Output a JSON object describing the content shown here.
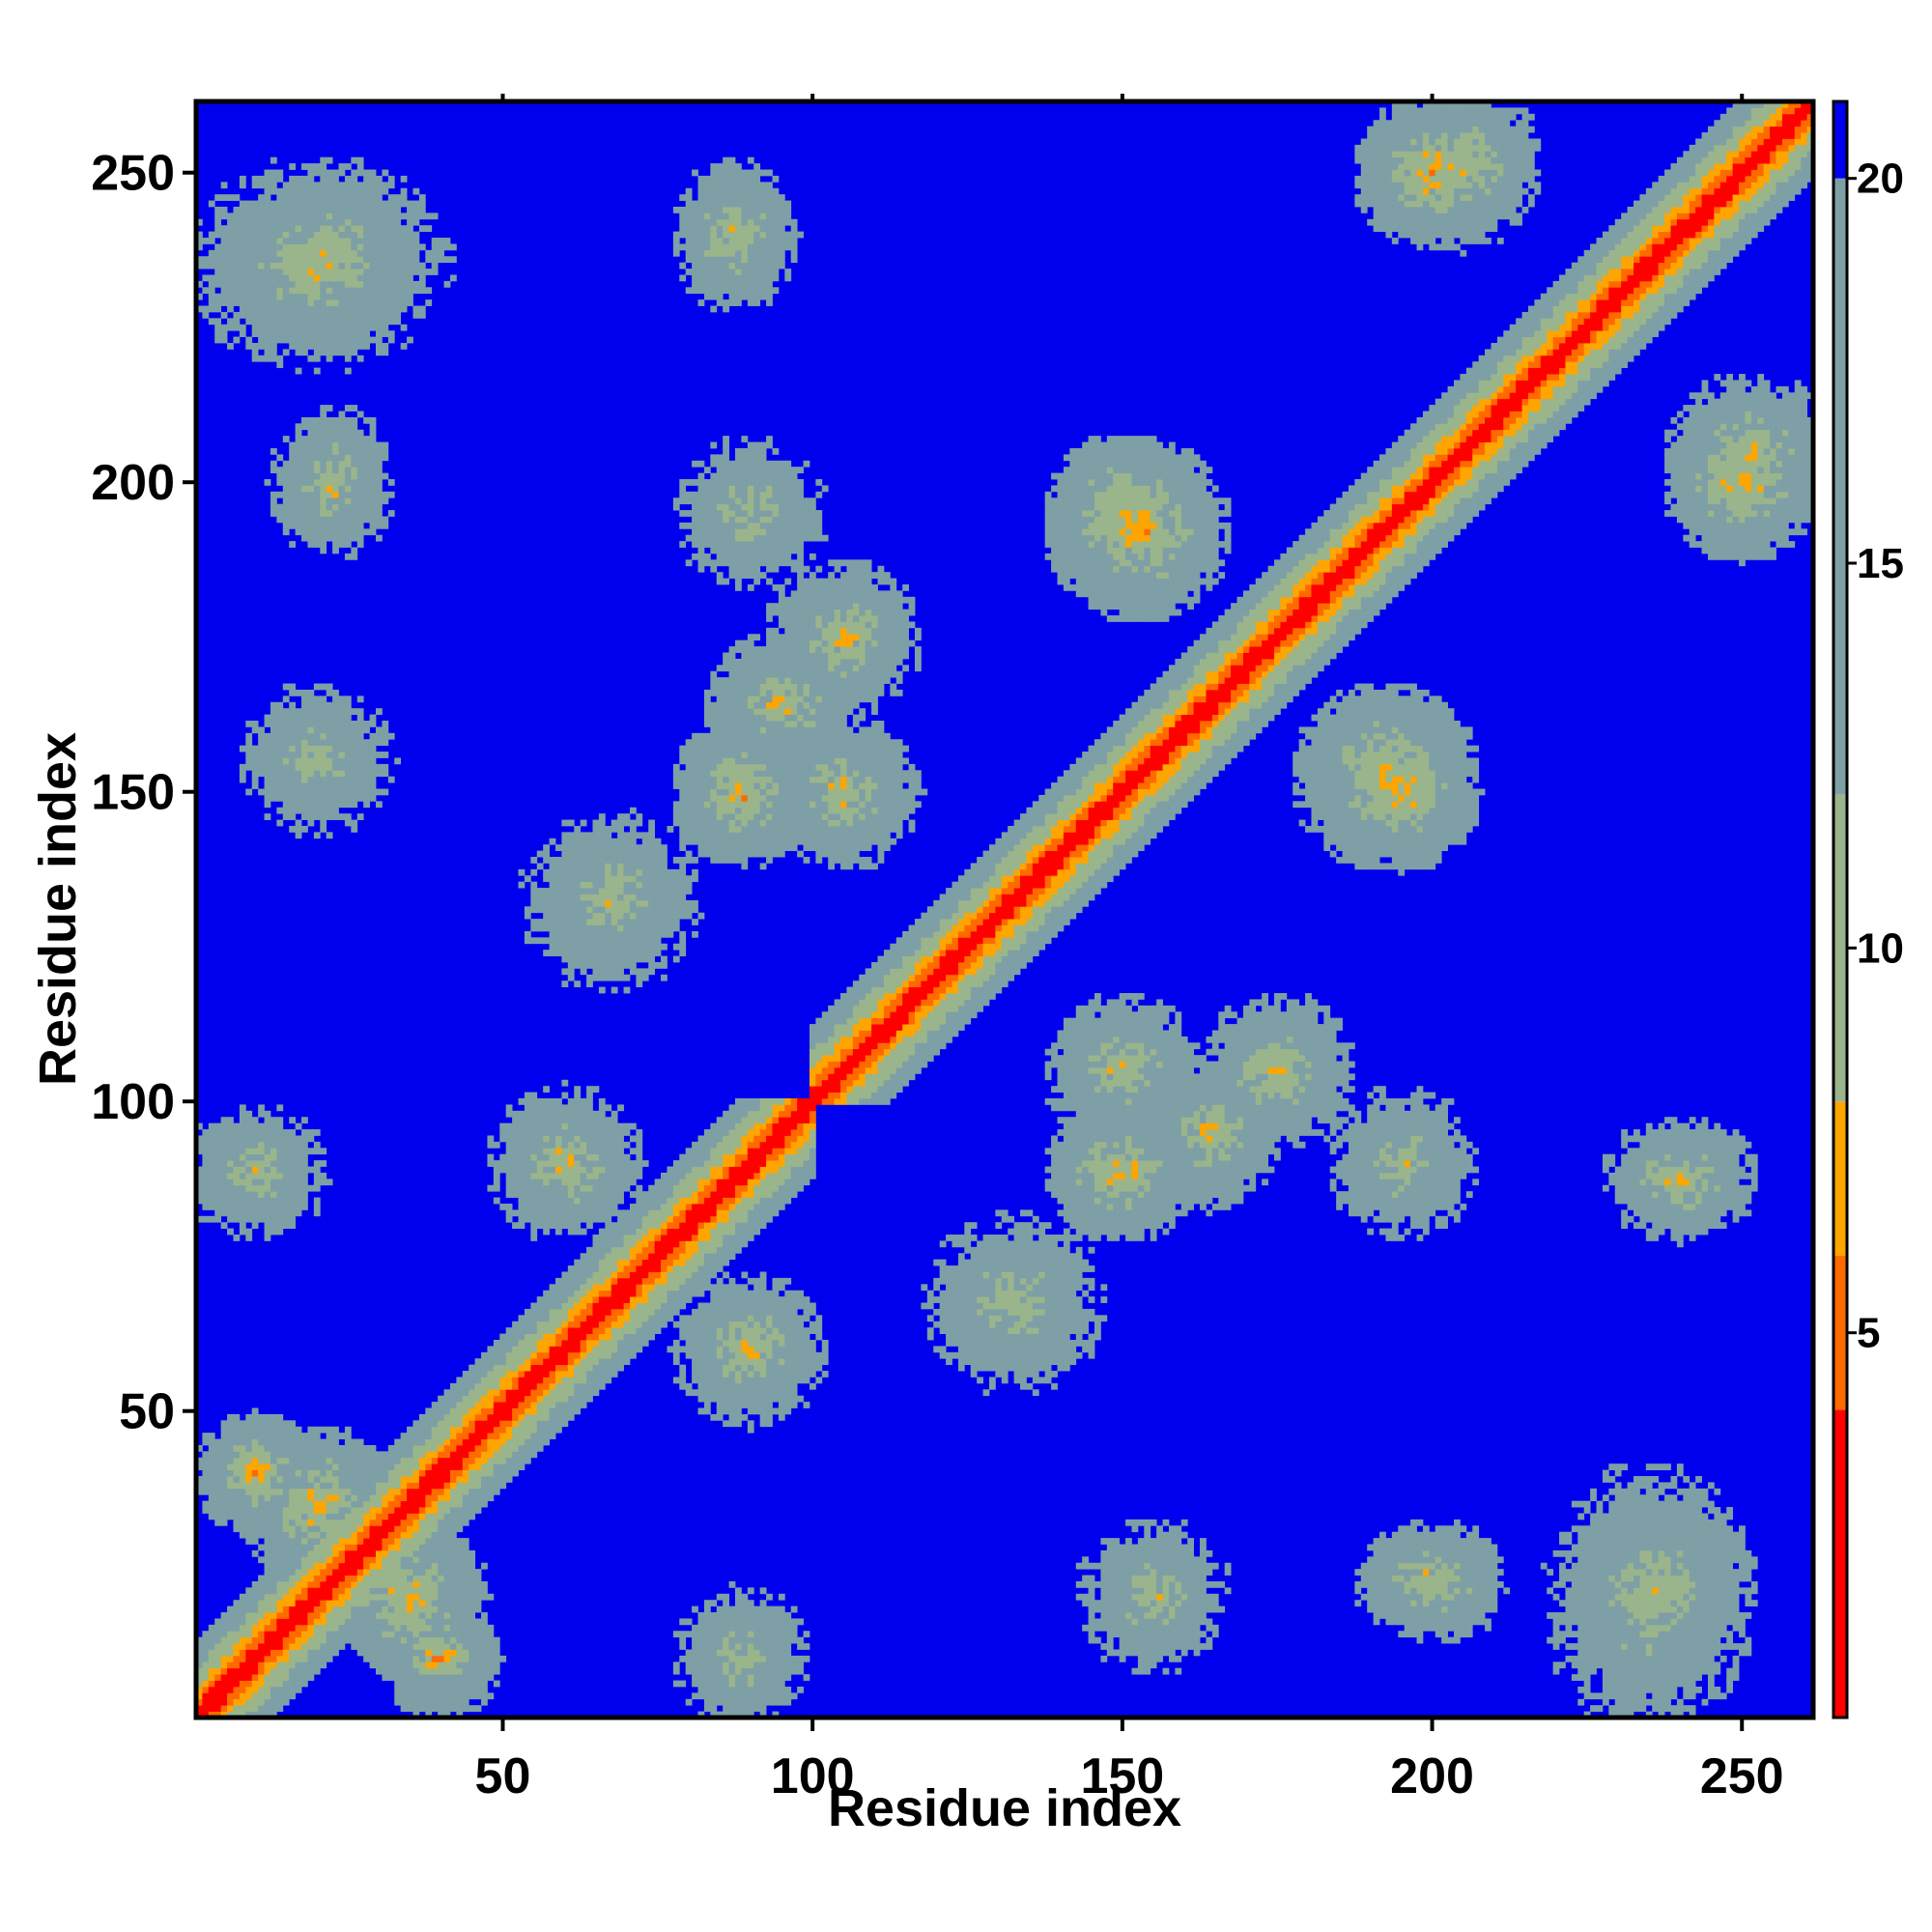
{
  "chart_data": {
    "type": "heatmap",
    "title": "",
    "xlabel": "Residue index",
    "ylabel": "Residue index",
    "n_residues": 261,
    "xlim": [
      1,
      261
    ],
    "ylim": [
      1,
      261
    ],
    "x_ticks": [
      50,
      100,
      150,
      200,
      250
    ],
    "y_ticks": [
      50,
      100,
      150,
      200,
      250
    ],
    "colorbar": {
      "range": [
        0,
        21
      ],
      "ticks": [
        5,
        10,
        15,
        20
      ],
      "bands": [
        {
          "from": 0,
          "to": 4,
          "color": "#ff0000"
        },
        {
          "from": 4,
          "to": 6,
          "color": "#ff6a00"
        },
        {
          "from": 6,
          "to": 8,
          "color": "#ffa500"
        },
        {
          "from": 8,
          "to": 12,
          "color": "#9ab58c"
        },
        {
          "from": 12,
          "to": 20,
          "color": "#7e9fa6"
        },
        {
          "from": 20,
          "to": 21,
          "color": "#0000ee"
        }
      ]
    },
    "background_color": "#0000ee",
    "contact_features": [
      {
        "a": [
          1,
          100
        ],
        "b": [
          1,
          100
        ],
        "min_distance": 1,
        "kind": "diagonal"
      },
      {
        "a": [
          100,
          261
        ],
        "b": [
          100,
          261
        ],
        "min_distance": 1,
        "kind": "diagonal"
      },
      {
        "a": [
          8,
          12
        ],
        "b": [
          38,
          42
        ],
        "min_distance": 7,
        "kind": "antiparallel"
      },
      {
        "a": [
          15,
          25
        ],
        "b": [
          30,
          40
        ],
        "min_distance": 7,
        "kind": "parallel"
      },
      {
        "a": [
          5,
          15
        ],
        "b": [
          85,
          92
        ],
        "min_distance": 9,
        "kind": "block"
      },
      {
        "a": [
          55,
          65
        ],
        "b": [
          85,
          95
        ],
        "min_distance": 8,
        "kind": "block"
      },
      {
        "a": [
          5,
          35
        ],
        "b": [
          225,
          245
        ],
        "min_distance": 9,
        "kind": "block"
      },
      {
        "a": [
          20,
          25
        ],
        "b": [
          195,
          205
        ],
        "min_distance": 8,
        "kind": "block"
      },
      {
        "a": [
          85,
          90
        ],
        "b": [
          235,
          245
        ],
        "min_distance": 8,
        "kind": "block"
      },
      {
        "a": [
          85,
          92
        ],
        "b": [
          145,
          155
        ],
        "min_distance": 7,
        "kind": "antiparallel"
      },
      {
        "a": [
          90,
          100
        ],
        "b": [
          160,
          168
        ],
        "min_distance": 8,
        "kind": "block"
      },
      {
        "a": [
          145,
          160
        ],
        "b": [
          185,
          200
        ],
        "min_distance": 7,
        "kind": "antiparallel"
      },
      {
        "a": [
          100,
          110
        ],
        "b": [
          145,
          155
        ],
        "min_distance": 8,
        "kind": "block"
      },
      {
        "a": [
          170,
          180
        ],
        "b": [
          100,
          110
        ],
        "min_distance": 8,
        "kind": "block"
      },
      {
        "a": [
          190,
          200
        ],
        "b": [
          145,
          155
        ],
        "min_distance": 7,
        "kind": "antiparallel"
      },
      {
        "a": [
          190,
          200
        ],
        "b": [
          85,
          95
        ],
        "min_distance": 9,
        "kind": "block"
      },
      {
        "a": [
          200,
          210
        ],
        "b": [
          245,
          258
        ],
        "min_distance": 8,
        "kind": "block"
      },
      {
        "a": [
          230,
          245
        ],
        "b": [
          15,
          30
        ],
        "min_distance": 9,
        "kind": "block"
      },
      {
        "a": [
          245,
          255
        ],
        "b": [
          195,
          205
        ],
        "min_distance": 7,
        "kind": "antiparallel"
      },
      {
        "a": [
          125,
          140
        ],
        "b": [
          60,
          75
        ],
        "min_distance": 9,
        "kind": "block"
      },
      {
        "a": [
          150,
          160
        ],
        "b": [
          15,
          25
        ],
        "min_distance": 9,
        "kind": "block"
      }
    ]
  }
}
